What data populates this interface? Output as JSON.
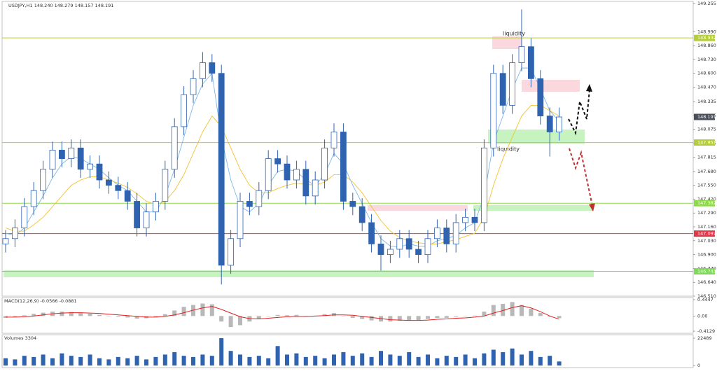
{
  "chart_data": [
    {
      "type": "candlestick",
      "title": "USDJPY,H1  148.240 148.279 148.157 148.191",
      "color": "#2f63b0",
      "open": [
        147.0,
        147.05,
        147.15,
        147.35,
        147.5,
        147.7,
        147.88,
        147.8,
        147.9,
        147.7,
        147.75,
        147.6,
        147.55,
        147.5,
        147.4,
        147.15,
        147.3,
        147.4,
        147.7,
        148.1,
        148.4,
        148.55,
        148.7,
        148.6,
        146.8,
        147.05,
        147.4,
        147.35,
        147.5,
        147.8,
        147.75,
        147.6,
        147.7,
        147.45,
        147.6,
        147.9,
        148.05,
        147.4,
        147.35,
        147.2,
        147.0,
        146.9,
        146.95,
        147.05,
        146.95,
        146.9,
        147.05,
        147.15,
        147.0,
        147.2,
        147.25,
        147.2,
        147.9,
        148.6,
        148.3,
        148.7,
        148.85,
        148.55,
        148.2,
        148.05
      ],
      "high": [
        147.13,
        147.23,
        147.43,
        147.58,
        147.78,
        147.96,
        147.96,
        147.98,
        147.98,
        147.83,
        147.83,
        147.68,
        147.63,
        147.58,
        147.48,
        147.38,
        147.48,
        147.78,
        148.18,
        148.48,
        148.63,
        148.8,
        148.78,
        148.68,
        147.13,
        147.48,
        147.48,
        147.58,
        147.88,
        147.88,
        147.83,
        147.78,
        147.78,
        147.68,
        147.98,
        148.13,
        148.13,
        147.48,
        147.43,
        147.28,
        147.08,
        147.03,
        147.13,
        147.13,
        147.03,
        147.13,
        147.23,
        147.23,
        147.28,
        147.33,
        147.33,
        147.98,
        148.68,
        148.68,
        148.78,
        149.2,
        148.93,
        148.63,
        148.28,
        148.279
      ],
      "low": [
        146.92,
        146.97,
        147.07,
        147.27,
        147.42,
        147.62,
        147.72,
        147.72,
        147.62,
        147.62,
        147.52,
        147.47,
        147.42,
        147.32,
        147.07,
        147.07,
        147.22,
        147.32,
        147.62,
        148.02,
        148.32,
        148.47,
        148.52,
        146.62,
        146.72,
        146.97,
        147.27,
        147.27,
        147.42,
        147.67,
        147.52,
        147.52,
        147.37,
        147.37,
        147.52,
        147.82,
        147.32,
        147.27,
        147.12,
        146.92,
        146.75,
        146.82,
        146.87,
        146.87,
        146.82,
        146.82,
        146.97,
        146.92,
        146.92,
        147.12,
        147.12,
        147.12,
        147.82,
        148.22,
        148.22,
        148.62,
        148.47,
        148.12,
        147.82,
        147.97
      ],
      "close": [
        147.05,
        147.15,
        147.35,
        147.5,
        147.7,
        147.88,
        147.8,
        147.9,
        147.7,
        147.75,
        147.6,
        147.55,
        147.5,
        147.4,
        147.15,
        147.3,
        147.4,
        147.7,
        148.1,
        148.4,
        148.55,
        148.7,
        148.6,
        146.8,
        147.05,
        147.4,
        147.35,
        147.5,
        147.8,
        147.75,
        147.6,
        147.7,
        147.45,
        147.6,
        147.9,
        148.05,
        147.4,
        147.35,
        147.2,
        147.0,
        146.9,
        146.95,
        147.05,
        146.95,
        146.9,
        147.05,
        147.15,
        147.0,
        147.2,
        147.25,
        147.2,
        147.9,
        148.6,
        148.3,
        148.7,
        148.85,
        148.55,
        148.2,
        148.05,
        148.191
      ],
      "lines": [
        {
          "color": "#7ab8e8",
          "values": [
            147.1,
            147.08,
            147.15,
            147.3,
            147.45,
            147.62,
            147.75,
            147.82,
            147.8,
            147.75,
            147.7,
            147.62,
            147.55,
            147.5,
            147.4,
            147.3,
            147.3,
            147.45,
            147.7,
            148.0,
            148.3,
            148.5,
            148.6,
            148.0,
            147.6,
            147.35,
            147.3,
            147.38,
            147.55,
            147.68,
            147.7,
            147.68,
            147.6,
            147.55,
            147.65,
            147.85,
            147.75,
            147.55,
            147.38,
            147.2,
            147.05,
            146.98,
            146.97,
            147.0,
            146.98,
            146.98,
            147.03,
            147.05,
            147.08,
            147.15,
            147.2,
            147.45,
            147.95,
            148.2,
            148.45,
            148.65,
            148.65,
            148.45,
            148.25,
            148.15
          ]
        },
        {
          "color": "#f2c230",
          "values": [
            147.15,
            147.12,
            147.12,
            147.18,
            147.25,
            147.35,
            147.45,
            147.55,
            147.6,
            147.63,
            147.63,
            147.6,
            147.57,
            147.53,
            147.47,
            147.4,
            147.37,
            147.4,
            147.5,
            147.65,
            147.85,
            148.05,
            148.2,
            148.1,
            147.9,
            147.7,
            147.55,
            147.48,
            147.48,
            147.52,
            147.55,
            147.57,
            147.56,
            147.55,
            147.58,
            147.65,
            147.65,
            147.58,
            147.48,
            147.35,
            147.22,
            147.12,
            147.06,
            147.03,
            147.01,
            147.0,
            147.0,
            147.02,
            147.04,
            147.07,
            147.1,
            147.25,
            147.55,
            147.8,
            148.0,
            148.2,
            148.3,
            148.3,
            148.25,
            148.2
          ]
        }
      ],
      "ylim": [
        146.51,
        149.255
      ],
      "yticks": [
        149.255,
        {
          "value": 148.99,
          "label": "148.990"
        },
        {
          "value": 148.86,
          "label": "148.860"
        },
        {
          "value": 148.73,
          "label": "148.730"
        },
        {
          "value": 148.6,
          "label": "148.600"
        },
        {
          "value": 148.47,
          "label": "148.470"
        },
        148.335,
        148.205,
        148.075,
        147.945,
        147.815,
        {
          "value": 147.68,
          "label": "147.680"
        },
        {
          "value": 147.55,
          "label": "147.550"
        },
        {
          "value": 147.42,
          "label": "147.420"
        },
        {
          "value": 147.29,
          "label": "147.290"
        },
        {
          "value": 147.16,
          "label": "147.160"
        },
        {
          "value": 147.03,
          "label": "147.030"
        },
        {
          "value": 146.9,
          "label": "146.900"
        },
        {
          "value": 146.77,
          "label": "146.770"
        },
        {
          "value": 146.64,
          "label": "146.640"
        },
        {
          "value": 146.51,
          "label": "146.510"
        }
      ],
      "levels": [
        {
          "value": 148.932,
          "color": "#b5cc3c"
        },
        {
          "value": 147.951,
          "color": "#b5cc3c"
        },
        {
          "value": 147.382,
          "color": "#8fd84a"
        },
        {
          "value": 147.097,
          "color": "#e03a4a"
        },
        {
          "value": 146.743,
          "color": "#7ed957"
        }
      ],
      "last_price": 148.191,
      "annotations": [
        "liquidity",
        "liquidity"
      ]
    },
    {
      "type": "macd",
      "title": "MACD(12,26,9) -0.0566 -0.0881",
      "color": "#b8b8b8",
      "line_color": "#e02020",
      "values": [
        -0.05,
        -0.02,
        0.02,
        0.06,
        0.09,
        0.12,
        0.12,
        0.11,
        0.08,
        0.06,
        0.03,
        0.0,
        -0.02,
        -0.04,
        -0.07,
        -0.06,
        -0.03,
        0.05,
        0.15,
        0.25,
        0.3,
        0.34,
        0.32,
        -0.15,
        -0.3,
        -0.25,
        -0.15,
        -0.08,
        0.0,
        0.03,
        0.02,
        0.03,
        0.0,
        0.01,
        0.05,
        0.08,
        0.0,
        -0.05,
        -0.08,
        -0.12,
        -0.15,
        -0.15,
        -0.13,
        -0.12,
        -0.11,
        -0.08,
        -0.05,
        -0.05,
        -0.02,
        0.0,
        0.01,
        0.12,
        0.3,
        0.33,
        0.38,
        0.3,
        0.2,
        0.08,
        -0.02,
        -0.0566
      ],
      "line_values": [
        -0.03,
        -0.03,
        -0.02,
        0.0,
        0.03,
        0.06,
        0.08,
        0.09,
        0.09,
        0.08,
        0.07,
        0.05,
        0.03,
        0.01,
        -0.01,
        -0.03,
        -0.03,
        -0.01,
        0.03,
        0.09,
        0.16,
        0.22,
        0.26,
        0.18,
        0.08,
        -0.02,
        -0.07,
        -0.08,
        -0.06,
        -0.04,
        -0.02,
        -0.01,
        -0.01,
        0.0,
        0.01,
        0.03,
        0.03,
        0.02,
        -0.01,
        -0.04,
        -0.07,
        -0.1,
        -0.11,
        -0.12,
        -0.12,
        -0.11,
        -0.09,
        -0.08,
        -0.06,
        -0.05,
        -0.03,
        0.0,
        0.08,
        0.15,
        0.23,
        0.28,
        0.22,
        0.12,
        0.0,
        -0.0881
      ],
      "ylim": [
        -0.4129,
        0.4447
      ],
      "yticks": [
        0.4447,
        {
          "value": 0,
          "label": "0.00"
        },
        -0.4129
      ]
    },
    {
      "type": "volume",
      "title": "Volumes 3304",
      "color": "#2f63b0",
      "values": [
        6000,
        5000,
        8000,
        7000,
        9000,
        6000,
        10000,
        8000,
        7000,
        9000,
        6000,
        5000,
        7000,
        6000,
        8000,
        5000,
        7000,
        9000,
        11000,
        8000,
        7000,
        9000,
        8000,
        22489,
        12000,
        9000,
        7000,
        8000,
        6000,
        16000,
        9000,
        10000,
        7000,
        8000,
        6000,
        9000,
        11000,
        8000,
        10000,
        7000,
        12000,
        9000,
        8000,
        11000,
        7000,
        9000,
        6000,
        8000,
        7000,
        9000,
        6000,
        10000,
        13000,
        11000,
        14000,
        9000,
        12000,
        7000,
        8000,
        3304
      ],
      "ylim": [
        0,
        22489
      ],
      "yticks": [
        22489,
        0
      ]
    }
  ]
}
